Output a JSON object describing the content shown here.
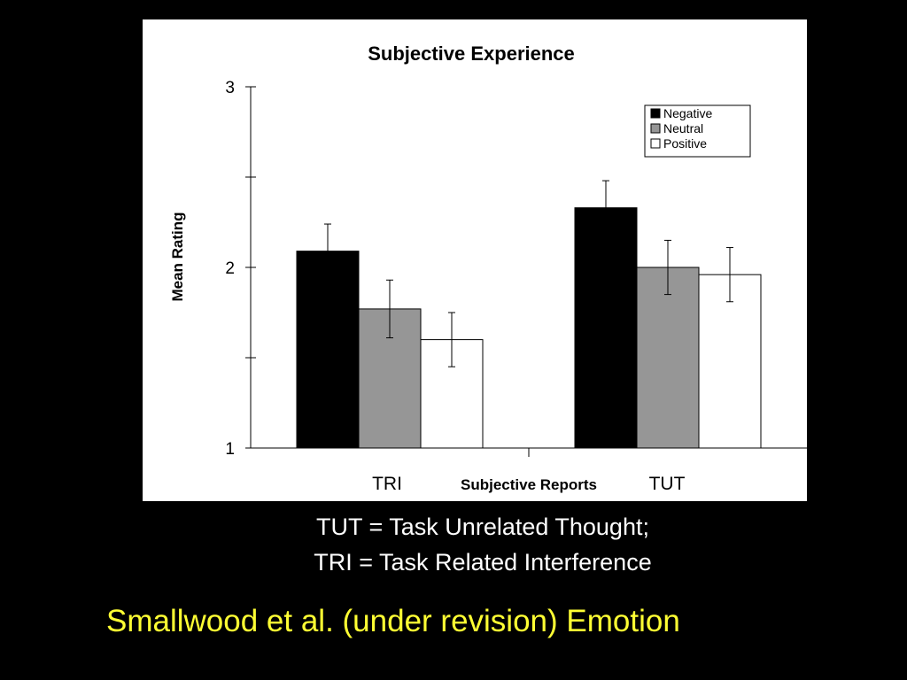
{
  "chart_data": {
    "type": "bar",
    "title": "Subjective Experience",
    "xlabel": "Subjective Reports",
    "ylabel": "Mean Rating",
    "categories": [
      "TRI",
      "TUT"
    ],
    "ylim": [
      1,
      3
    ],
    "yticks": [
      1,
      2,
      3
    ],
    "legend_position": "top-right",
    "grid": false,
    "series": [
      {
        "name": "Negative",
        "color": "#000000",
        "values": [
          2.09,
          2.33
        ],
        "errors": [
          0.15,
          0.15
        ]
      },
      {
        "name": "Neutral",
        "color": "#969696",
        "values": [
          1.77,
          2.0
        ],
        "errors": [
          0.16,
          0.15
        ]
      },
      {
        "name": "Positive",
        "color": "#ffffff",
        "values": [
          1.6,
          1.96
        ],
        "errors": [
          0.15,
          0.15
        ]
      }
    ]
  },
  "captions": {
    "line1": "TUT = Task Unrelated Thought;",
    "line2": "TRI = Task Related Interference"
  },
  "citation": "Smallwood et al. (under revision) Emotion"
}
